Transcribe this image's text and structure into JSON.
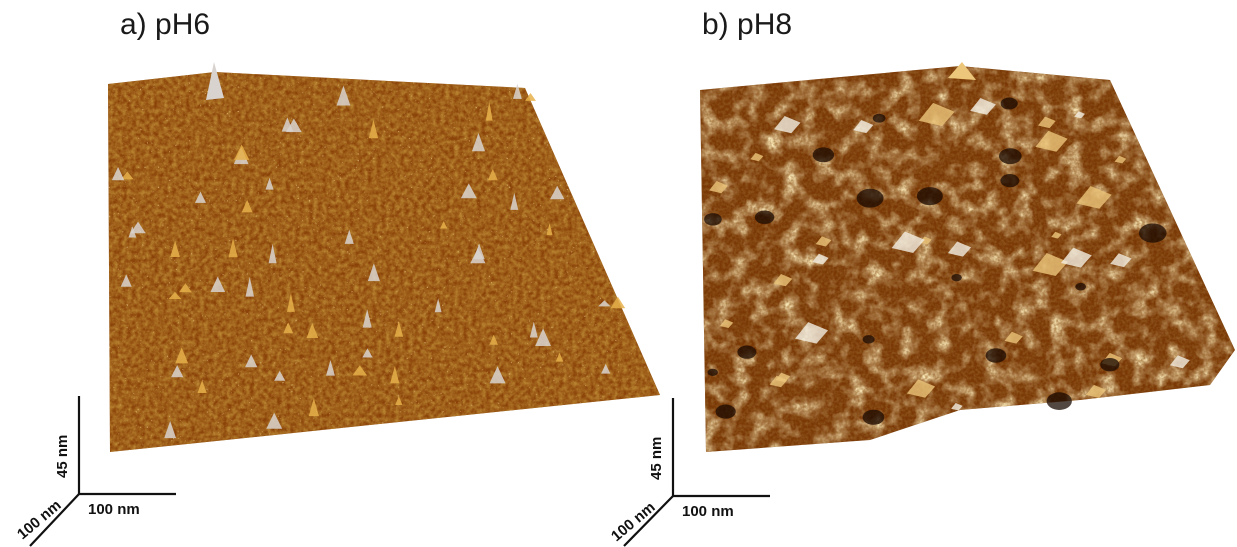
{
  "panels": [
    {
      "title": "a) pH6",
      "z_scale": "45 nm",
      "x_scale": "100 nm",
      "y_scale": "100 nm",
      "colors": {
        "base": "#7a3a06",
        "mid": "#b8630f",
        "high": "#e6b04a",
        "peak": "#d9d3cf"
      }
    },
    {
      "title": "b) pH8",
      "z_scale": "45 nm",
      "x_scale": "100 nm",
      "y_scale": "100 nm",
      "colors": {
        "base": "#6e3205",
        "mid": "#b05f12",
        "high": "#ecc67a",
        "peak": "#f4efe2"
      }
    }
  ]
}
